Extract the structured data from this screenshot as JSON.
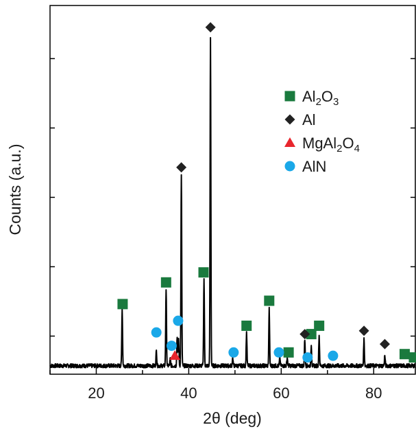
{
  "chart_data": {
    "type": "line",
    "xlabel": "2θ (deg)",
    "ylabel": "Counts (a.u.)",
    "xlim": [
      10,
      89
    ],
    "ylim": [
      0,
      105
    ],
    "x_ticks": [
      20,
      40,
      60,
      80
    ],
    "y_tick_labels": "none",
    "grid": false,
    "legend_position": "top-right",
    "line_color": "#000000",
    "baseline": 1.5,
    "peaks": [
      {
        "x": 25.6,
        "height": 17.0
      },
      {
        "x": 33.0,
        "height": 4.5
      },
      {
        "x": 35.1,
        "height": 23.0
      },
      {
        "x": 36.0,
        "height": 2.0
      },
      {
        "x": 37.5,
        "height": 9.0
      },
      {
        "x": 37.8,
        "height": 8.0
      },
      {
        "x": 38.4,
        "height": 57.0
      },
      {
        "x": 43.3,
        "height": 26.0
      },
      {
        "x": 44.7,
        "height": 98.0
      },
      {
        "x": 49.5,
        "height": 2.5
      },
      {
        "x": 52.5,
        "height": 10.0
      },
      {
        "x": 57.4,
        "height": 17.0
      },
      {
        "x": 59.7,
        "height": 2.5
      },
      {
        "x": 61.3,
        "height": 2.5
      },
      {
        "x": 65.1,
        "height": 8.0
      },
      {
        "x": 66.5,
        "height": 6.0
      },
      {
        "x": 68.2,
        "height": 9.0
      },
      {
        "x": 77.9,
        "height": 8.0
      },
      {
        "x": 82.4,
        "height": 3.0
      }
    ],
    "legend": [
      {
        "name": "Al",
        "sub": "2",
        "name2": "O",
        "sub2": "3",
        "marker": "square",
        "color": "#1a7a3e"
      },
      {
        "name": "Al",
        "sub": "",
        "name2": "",
        "sub2": "",
        "marker": "diamond",
        "color": "#222222"
      },
      {
        "name": "MgAl",
        "sub": "2",
        "name2": "O",
        "sub2": "4",
        "marker": "triangle",
        "color": "#e8262d"
      },
      {
        "name": "AlN",
        "sub": "",
        "name2": "",
        "sub2": "",
        "marker": "circle",
        "color": "#1aa8e8"
      }
    ],
    "markers": [
      {
        "phase": "Al2O3",
        "marker": "square",
        "color": "#1a7a3e",
        "x": 25.7,
        "y": 20.0
      },
      {
        "phase": "Al2O3",
        "marker": "square",
        "color": "#1a7a3e",
        "x": 35.1,
        "y": 26.5
      },
      {
        "phase": "Al2O3",
        "marker": "square",
        "color": "#1a7a3e",
        "x": 43.2,
        "y": 29.5
      },
      {
        "phase": "Al2O3",
        "marker": "square",
        "color": "#1a7a3e",
        "x": 52.5,
        "y": 13.5
      },
      {
        "phase": "Al2O3",
        "marker": "square",
        "color": "#1a7a3e",
        "x": 57.4,
        "y": 21.0
      },
      {
        "phase": "Al2O3",
        "marker": "square",
        "color": "#1a7a3e",
        "x": 61.6,
        "y": 5.5
      },
      {
        "phase": "Al2O3",
        "marker": "square",
        "color": "#1a7a3e",
        "x": 66.5,
        "y": 11.0
      },
      {
        "phase": "Al2O3",
        "marker": "square",
        "color": "#1a7a3e",
        "x": 68.2,
        "y": 13.5
      },
      {
        "phase": "Al2O3",
        "marker": "square",
        "color": "#1a7a3e",
        "x": 86.7,
        "y": 5.0
      },
      {
        "phase": "Al2O3",
        "marker": "square",
        "color": "#1a7a3e",
        "x": 88.7,
        "y": 4.0
      },
      {
        "phase": "Al",
        "marker": "diamond",
        "color": "#222222",
        "x": 44.7,
        "y": 103.0
      },
      {
        "phase": "Al",
        "marker": "diamond",
        "color": "#222222",
        "x": 38.4,
        "y": 61.0
      },
      {
        "phase": "Al",
        "marker": "diamond",
        "color": "#222222",
        "x": 65.1,
        "y": 11.0
      },
      {
        "phase": "Al",
        "marker": "diamond",
        "color": "#222222",
        "x": 77.9,
        "y": 12.0
      },
      {
        "phase": "Al",
        "marker": "diamond",
        "color": "#222222",
        "x": 82.4,
        "y": 8.0
      },
      {
        "phase": "MgAl2O4",
        "marker": "triangle",
        "color": "#e8262d",
        "x": 37.0,
        "y": 4.5
      },
      {
        "phase": "AlN",
        "marker": "circle",
        "color": "#1aa8e8",
        "x": 33.0,
        "y": 11.5
      },
      {
        "phase": "AlN",
        "marker": "circle",
        "color": "#1aa8e8",
        "x": 36.3,
        "y": 7.5
      },
      {
        "phase": "AlN",
        "marker": "circle",
        "color": "#1aa8e8",
        "x": 37.7,
        "y": 15.0
      },
      {
        "phase": "AlN",
        "marker": "circle",
        "color": "#1aa8e8",
        "x": 49.7,
        "y": 5.5
      },
      {
        "phase": "AlN",
        "marker": "circle",
        "color": "#1aa8e8",
        "x": 59.5,
        "y": 5.5
      },
      {
        "phase": "AlN",
        "marker": "circle",
        "color": "#1aa8e8",
        "x": 65.7,
        "y": 4.0
      },
      {
        "phase": "AlN",
        "marker": "circle",
        "color": "#1aa8e8",
        "x": 71.2,
        "y": 4.5
      }
    ]
  }
}
